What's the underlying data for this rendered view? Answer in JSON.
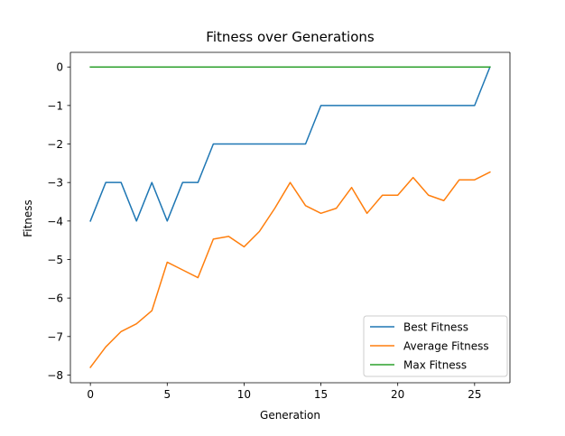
{
  "chart_data": {
    "type": "line",
    "title": "Fitness over Generations",
    "xlabel": "Generation",
    "ylabel": "Fitness",
    "xlim": [
      -1.3,
      27.3
    ],
    "ylim": [
      -8.2,
      0.38
    ],
    "xticks": [
      0,
      5,
      10,
      15,
      20,
      25
    ],
    "xtick_labels": [
      "0",
      "5",
      "10",
      "15",
      "20",
      "25"
    ],
    "yticks": [
      0,
      -1,
      -2,
      -3,
      -4,
      -5,
      -6,
      -7,
      -8
    ],
    "ytick_labels": [
      "0",
      "−1",
      "−2",
      "−3",
      "−4",
      "−5",
      "−6",
      "−7",
      "−8"
    ],
    "grid": false,
    "legend_position": "lower-right",
    "x": [
      0,
      1,
      2,
      3,
      4,
      5,
      6,
      7,
      8,
      9,
      10,
      11,
      12,
      13,
      14,
      15,
      16,
      17,
      18,
      19,
      20,
      21,
      22,
      23,
      24,
      25,
      26
    ],
    "series": [
      {
        "name": "Best Fitness",
        "color": "#1f77b4",
        "values": [
          -4,
          -3,
          -3,
          -4,
          -3,
          -4,
          -3,
          -3,
          -2,
          -2,
          -2,
          -2,
          -2,
          -2,
          -2,
          -1,
          -1,
          -1,
          -1,
          -1,
          -1,
          -1,
          -1,
          -1,
          -1,
          -1,
          0
        ]
      },
      {
        "name": "Average Fitness",
        "color": "#ff7f0e",
        "values": [
          -7.8,
          -7.27,
          -6.87,
          -6.67,
          -6.33,
          -5.07,
          -5.27,
          -5.47,
          -4.47,
          -4.4,
          -4.67,
          -4.27,
          -3.67,
          -3.0,
          -3.6,
          -3.8,
          -3.67,
          -3.13,
          -3.8,
          -3.33,
          -3.33,
          -2.87,
          -3.33,
          -3.47,
          -2.93,
          -2.93,
          -2.73
        ]
      },
      {
        "name": "Max Fitness",
        "color": "#2ca02c",
        "values": [
          0,
          0,
          0,
          0,
          0,
          0,
          0,
          0,
          0,
          0,
          0,
          0,
          0,
          0,
          0,
          0,
          0,
          0,
          0,
          0,
          0,
          0,
          0,
          0,
          0,
          0,
          0
        ]
      }
    ]
  }
}
